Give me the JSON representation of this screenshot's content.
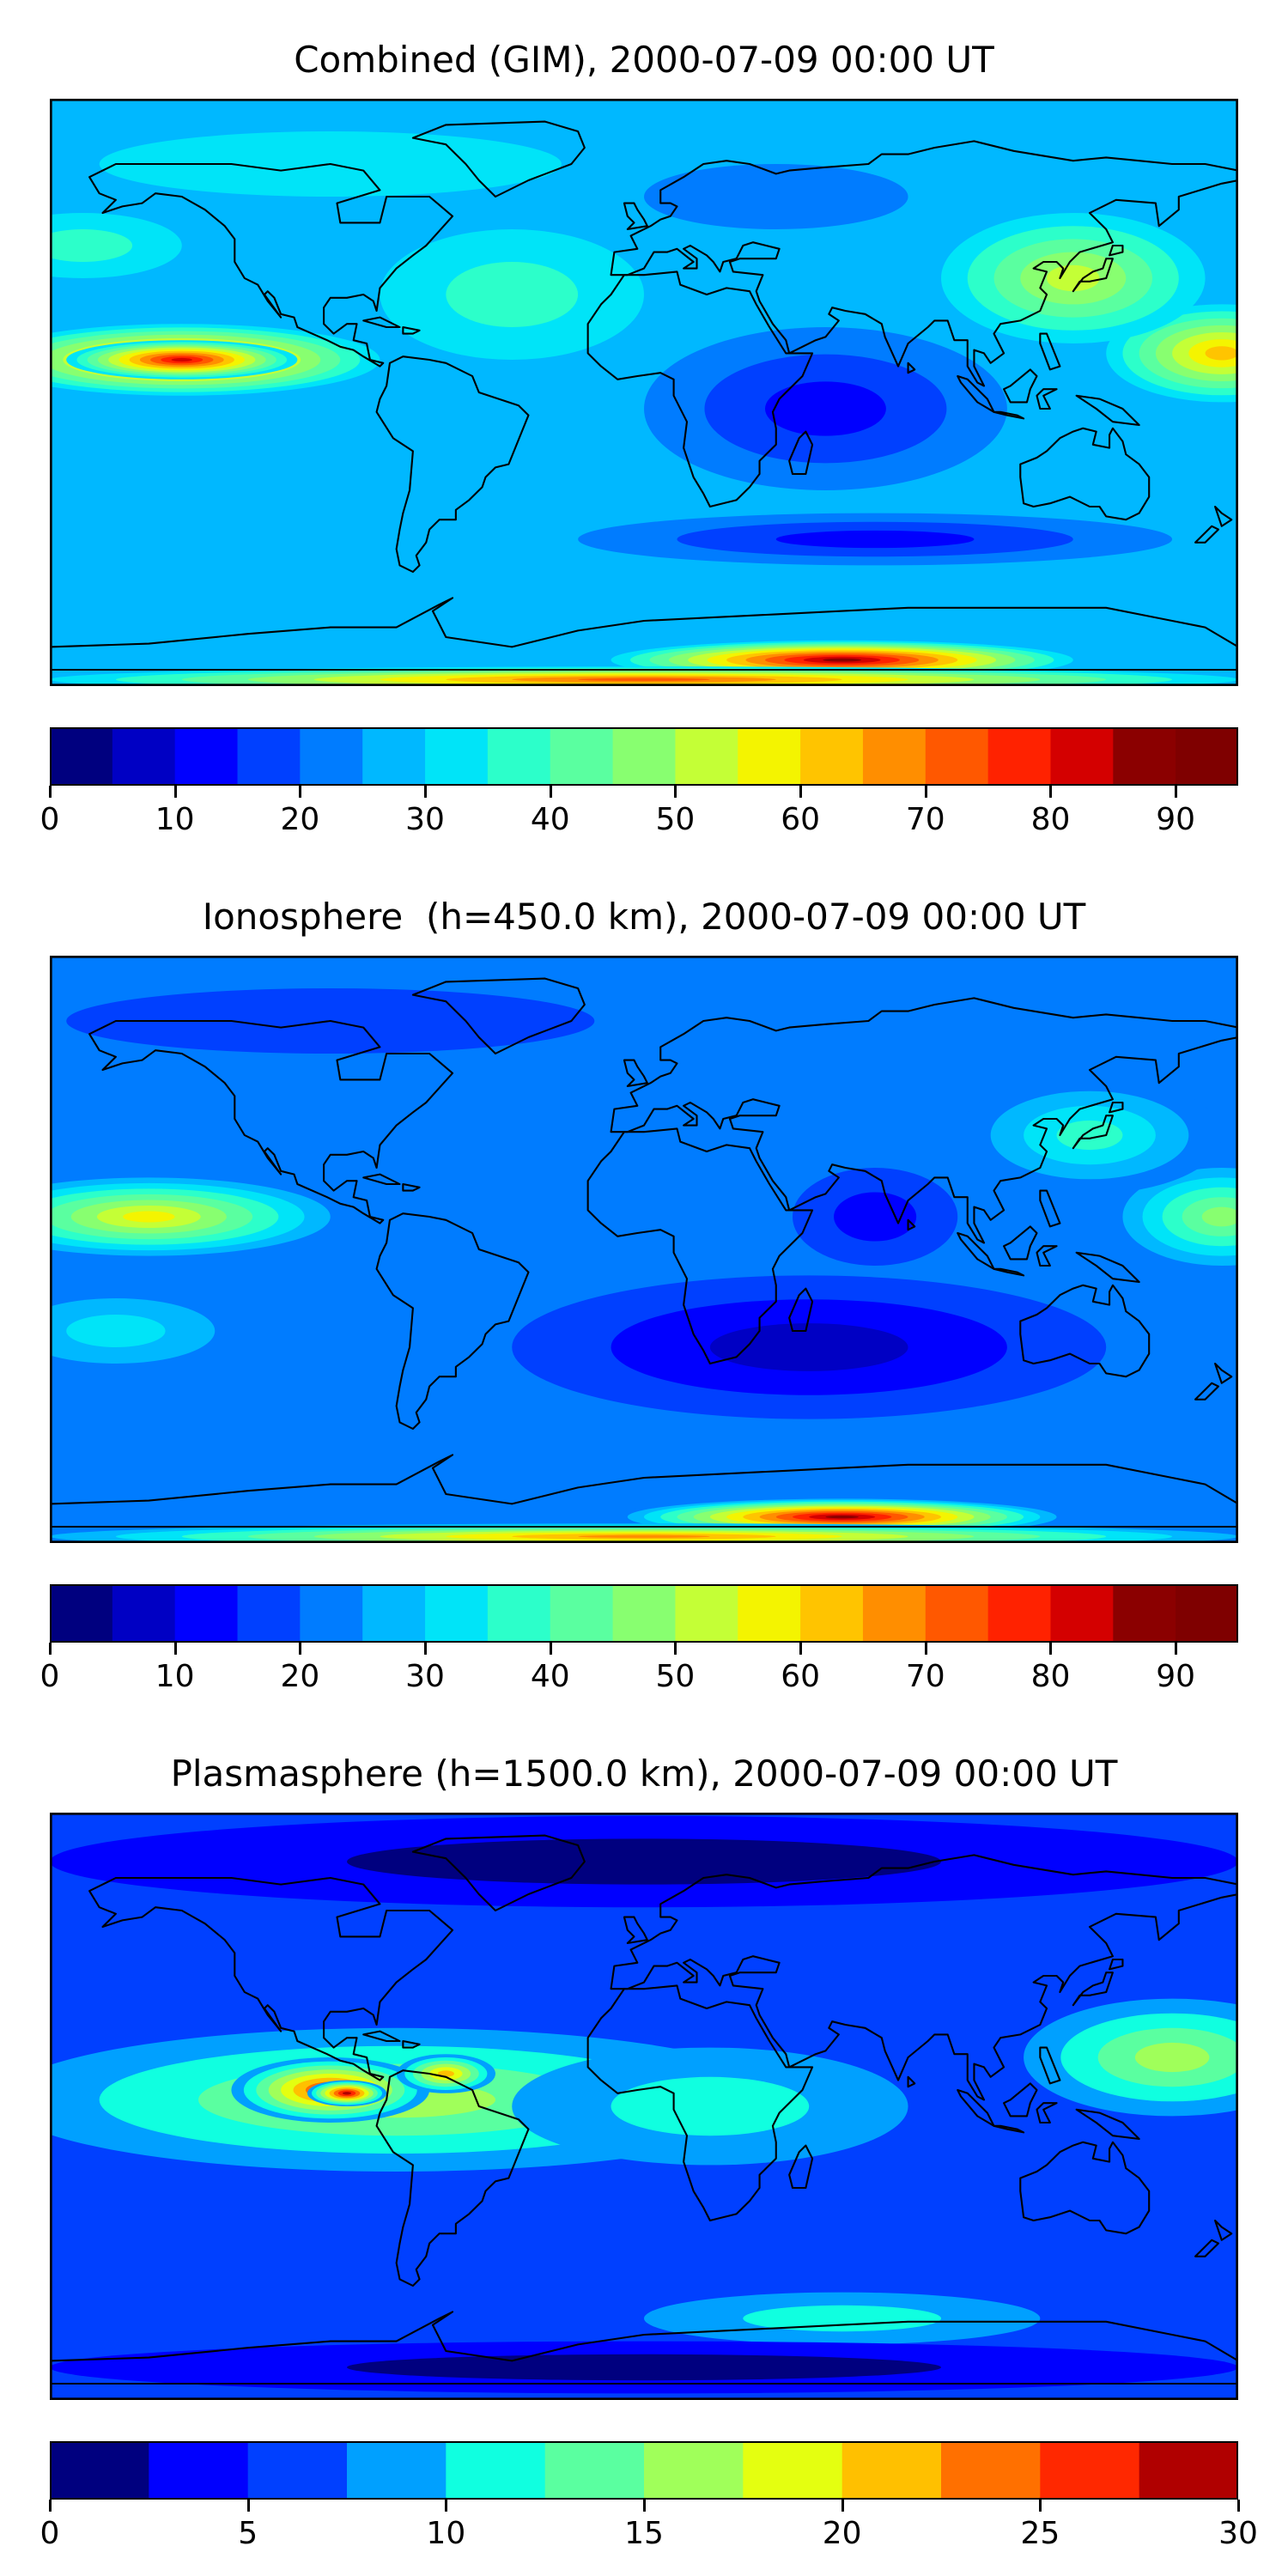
{
  "panels": [
    {
      "title": "Combined (GIM), 2000-07-09 00:00 UT",
      "colorbar": {
        "min": 0,
        "max": 95,
        "step": 5,
        "ticks": [
          "0",
          "10",
          "20",
          "30",
          "40",
          "50",
          "60",
          "70",
          "80",
          "90"
        ],
        "tick_values": [
          0,
          10,
          20,
          30,
          40,
          50,
          60,
          70,
          80,
          90
        ]
      },
      "field": {
        "background": 26,
        "blobs": [
          {
            "lon": -140,
            "lat": 10,
            "rx": 60,
            "ry": 11,
            "val": 74
          },
          {
            "lon": -140,
            "lat": 10,
            "rx": 35,
            "ry": 6,
            "val": 80
          },
          {
            "lon": 175,
            "lat": 12,
            "rx": 35,
            "ry": 15,
            "val": 62
          },
          {
            "lon": 130,
            "lat": 35,
            "rx": 40,
            "ry": 20,
            "val": 50
          },
          {
            "lon": 55,
            "lat": -5,
            "rx": 55,
            "ry": 25,
            "val": 12
          },
          {
            "lon": 70,
            "lat": -45,
            "rx": 90,
            "ry": 8,
            "val": 10
          },
          {
            "lon": 60,
            "lat": -82,
            "rx": 70,
            "ry": 6,
            "val": 88
          },
          {
            "lon": 0,
            "lat": -88,
            "rx": 180,
            "ry": 4,
            "val": 70
          },
          {
            "lon": -170,
            "lat": 45,
            "rx": 30,
            "ry": 10,
            "val": 38
          },
          {
            "lon": -95,
            "lat": 70,
            "rx": 70,
            "ry": 10,
            "val": 30
          },
          {
            "lon": 40,
            "lat": 60,
            "rx": 40,
            "ry": 10,
            "val": 20
          },
          {
            "lon": -40,
            "lat": 30,
            "rx": 40,
            "ry": 20,
            "val": 35
          }
        ]
      }
    },
    {
      "title": "Ionosphere  (h=450.0 km), 2000-07-09 00:00 UT",
      "colorbar": {
        "min": 0,
        "max": 95,
        "step": 5,
        "ticks": [
          "0",
          "10",
          "20",
          "30",
          "40",
          "50",
          "60",
          "70",
          "80",
          "90"
        ],
        "tick_values": [
          0,
          10,
          20,
          30,
          40,
          50,
          60,
          70,
          80,
          90
        ]
      },
      "field": {
        "background": 20,
        "blobs": [
          {
            "lon": -150,
            "lat": 10,
            "rx": 55,
            "ry": 12,
            "val": 55
          },
          {
            "lon": 175,
            "lat": 10,
            "rx": 30,
            "ry": 15,
            "val": 45
          },
          {
            "lon": 135,
            "lat": 35,
            "rx": 40,
            "ry": 18,
            "val": 38
          },
          {
            "lon": 50,
            "lat": -30,
            "rx": 90,
            "ry": 22,
            "val": 5
          },
          {
            "lon": 70,
            "lat": 10,
            "rx": 25,
            "ry": 15,
            "val": 10
          },
          {
            "lon": 60,
            "lat": -82,
            "rx": 70,
            "ry": 6,
            "val": 88
          },
          {
            "lon": 0,
            "lat": -88,
            "rx": 180,
            "ry": 4,
            "val": 65
          },
          {
            "lon": -160,
            "lat": -25,
            "rx": 30,
            "ry": 10,
            "val": 32
          },
          {
            "lon": -95,
            "lat": 70,
            "rx": 80,
            "ry": 10,
            "val": 18
          }
        ]
      }
    },
    {
      "title": "Plasmasphere (h=1500.0 km), 2000-07-09 00:00 UT",
      "colorbar": {
        "min": 0,
        "max": 30,
        "step": 2.5,
        "ticks": [
          "0",
          "5",
          "10",
          "15",
          "20",
          "25",
          "30"
        ],
        "tick_values": [
          0,
          5,
          10,
          15,
          20,
          25,
          30
        ]
      },
      "field": {
        "background": 6,
        "blobs": [
          {
            "lon": -75,
            "lat": 2,
            "rx": 120,
            "ry": 22,
            "val": 16
          },
          {
            "lon": -95,
            "lat": 5,
            "rx": 30,
            "ry": 10,
            "val": 25
          },
          {
            "lon": -90,
            "lat": 4,
            "rx": 12,
            "ry": 4,
            "val": 28
          },
          {
            "lon": -60,
            "lat": 10,
            "rx": 15,
            "ry": 6,
            "val": 20
          },
          {
            "lon": 160,
            "lat": 15,
            "rx": 45,
            "ry": 18,
            "val": 15
          },
          {
            "lon": 40,
            "lat": 5,
            "rx": 15,
            "ry": 10,
            "val": 4
          },
          {
            "lon": 20,
            "lat": 0,
            "rx": 60,
            "ry": 18,
            "val": 11
          },
          {
            "lon": 60,
            "lat": -65,
            "rx": 60,
            "ry": 8,
            "val": 10
          },
          {
            "lon": 0,
            "lat": 75,
            "rx": 180,
            "ry": 14,
            "val": 2
          },
          {
            "lon": 0,
            "lat": -80,
            "rx": 180,
            "ry": 8,
            "val": 1
          }
        ]
      }
    }
  ],
  "palettes": {
    "jet19": [
      "#00007f",
      "#0000c4",
      "#0000ff",
      "#0040ff",
      "#007cff",
      "#00b8ff",
      "#00e4f8",
      "#2cffca",
      "#5affa0",
      "#88ff70",
      "#c4ff36",
      "#f4f400",
      "#ffc400",
      "#ff8e00",
      "#ff5800",
      "#ff2200",
      "#d40000",
      "#8b0000",
      "#7f0000"
    ],
    "jet12": [
      "#00007f",
      "#0000ff",
      "#0040ff",
      "#00a0ff",
      "#10ffe0",
      "#5affa0",
      "#a0ff5a",
      "#e4ff10",
      "#ffc000",
      "#ff7000",
      "#ff2800",
      "#b00000"
    ]
  },
  "outline_color": "#000000"
}
